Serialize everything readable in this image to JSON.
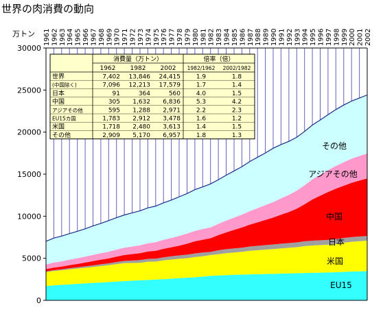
{
  "chart_data": {
    "type": "area",
    "stacked": true,
    "title": "世界の肉消費の動向",
    "ylabel": "万トン",
    "ylim": [
      0,
      30000
    ],
    "yticks": [
      0,
      5000,
      10000,
      15000,
      20000,
      25000,
      30000
    ],
    "x": [
      1961,
      1962,
      1963,
      1964,
      1965,
      1966,
      1967,
      1968,
      1969,
      1970,
      1971,
      1972,
      1973,
      1974,
      1975,
      1976,
      1977,
      1978,
      1979,
      1980,
      1981,
      1982,
      1983,
      1984,
      1985,
      1986,
      1987,
      1988,
      1989,
      1990,
      1991,
      1992,
      1993,
      1994,
      1995,
      1996,
      1997,
      1998,
      1999,
      2000,
      2001,
      2002
    ],
    "x_labels": [
      "1961",
      "1962",
      "1963",
      "1964",
      "1965",
      "1966",
      "1967",
      "1968",
      "1969",
      "1970",
      "1971",
      "1972",
      "1973",
      "1974",
      "1975",
      "1976",
      "1977",
      "1978",
      "1979",
      "1980",
      "1981",
      "1982",
      "1983",
      "1984",
      "1985",
      "1986",
      "1987",
      "1988",
      "1989",
      "1990",
      "1991",
      "1992",
      "1993",
      "1994",
      "1995",
      "1996",
      "1997",
      "1998",
      "1999",
      "2000",
      "2001",
      "2002"
    ],
    "grid": "vertical",
    "series": [
      {
        "name": "EU15",
        "color": "#33ffff",
        "values": [
          1700,
          1783,
          1840,
          1900,
          1960,
          2010,
          2070,
          2120,
          2170,
          2230,
          2280,
          2340,
          2390,
          2420,
          2460,
          2520,
          2570,
          2640,
          2690,
          2740,
          2820,
          2912,
          2960,
          3000,
          3030,
          3060,
          3090,
          3110,
          3130,
          3150,
          3180,
          3200,
          3220,
          3250,
          3270,
          3290,
          3310,
          3340,
          3380,
          3420,
          3450,
          3478
        ]
      },
      {
        "name": "米国",
        "color": "#ffff00",
        "values": [
          1650,
          1718,
          1740,
          1790,
          1820,
          1860,
          1900,
          1960,
          2000,
          2080,
          2140,
          2100,
          2080,
          2180,
          2150,
          2240,
          2280,
          2300,
          2320,
          2400,
          2420,
          2480,
          2520,
          2600,
          2650,
          2700,
          2800,
          2850,
          2900,
          2950,
          3000,
          3050,
          3100,
          3200,
          3250,
          3280,
          3300,
          3380,
          3480,
          3540,
          3580,
          3613
        ]
      },
      {
        "name": "日本",
        "color": "#a0a0a0",
        "values": [
          80,
          91,
          110,
          130,
          150,
          170,
          190,
          210,
          230,
          250,
          270,
          300,
          320,
          330,
          340,
          360,
          380,
          400,
          420,
          440,
          450,
          364,
          470,
          480,
          490,
          500,
          510,
          520,
          530,
          540,
          550,
          560,
          570,
          570,
          570,
          570,
          570,
          560,
          560,
          560,
          560,
          560
        ]
      },
      {
        "name": "中国",
        "color": "#ff0000",
        "values": [
          280,
          305,
          330,
          360,
          400,
          450,
          500,
          540,
          580,
          640,
          700,
          760,
          820,
          880,
          940,
          1000,
          1080,
          1160,
          1300,
          1440,
          1520,
          1632,
          1800,
          2000,
          2200,
          2400,
          2600,
          2800,
          3000,
          3200,
          3450,
          3700,
          4000,
          4400,
          4900,
          5300,
          5700,
          6000,
          6200,
          6450,
          6650,
          6836
        ]
      },
      {
        "name": "アジアその他",
        "color": "#ff99cc",
        "values": [
          560,
          595,
          620,
          650,
          680,
          710,
          740,
          770,
          800,
          830,
          860,
          900,
          940,
          980,
          1020,
          1070,
          1110,
          1160,
          1210,
          1240,
          1270,
          1288,
          1340,
          1400,
          1460,
          1530,
          1600,
          1680,
          1760,
          1840,
          1940,
          2040,
          2150,
          2260,
          2400,
          2500,
          2600,
          2700,
          2800,
          2870,
          2920,
          2971
        ]
      },
      {
        "name": "その他",
        "color": "#ccffff",
        "values": [
          2750,
          2909,
          3000,
          3100,
          3200,
          3300,
          3450,
          3550,
          3700,
          3800,
          3900,
          4000,
          4100,
          4200,
          4300,
          4400,
          4500,
          4650,
          4750,
          4900,
          5000,
          5170,
          5250,
          5400,
          5550,
          5700,
          5900,
          6050,
          6200,
          6400,
          6400,
          6350,
          6350,
          6400,
          6450,
          6500,
          6600,
          6700,
          6800,
          6850,
          6900,
          6957
        ]
      }
    ],
    "series_labels": [
      "EU15",
      "米国",
      "日本",
      "中国",
      "アジアその他",
      "その他"
    ],
    "table": {
      "header_group1": "消費量（万トン）",
      "header_group2": "倍率（倍）",
      "columns": [
        "1962",
        "1982",
        "2002",
        "1982/1962",
        "2002/1982"
      ],
      "rows": [
        {
          "label": "世界",
          "cells": [
            "7,402",
            "13,846",
            "24,415",
            "1.9",
            "1.8"
          ]
        },
        {
          "label": "(中国除く)",
          "cells": [
            "7,096",
            "12,213",
            "17,579",
            "1.7",
            "1.4"
          ]
        },
        {
          "label": "日本",
          "cells": [
            "91",
            "364",
            "560",
            "4.0",
            "1.5"
          ]
        },
        {
          "label": "中国",
          "cells": [
            "305",
            "1,632",
            "6,836",
            "5.3",
            "4.2"
          ]
        },
        {
          "label": "アジアその他",
          "cells": [
            "595",
            "1,288",
            "2,971",
            "2.2",
            "2.3"
          ]
        },
        {
          "label": "EU15カ国",
          "cells": [
            "1,783",
            "2,912",
            "3,478",
            "1.6",
            "1.2"
          ]
        },
        {
          "label": "米国",
          "cells": [
            "1,718",
            "2,480",
            "3,613",
            "1.4",
            "1.5"
          ]
        },
        {
          "label": "その他",
          "cells": [
            "2,909",
            "5,170",
            "6,957",
            "1.8",
            "1.3"
          ]
        }
      ]
    }
  }
}
